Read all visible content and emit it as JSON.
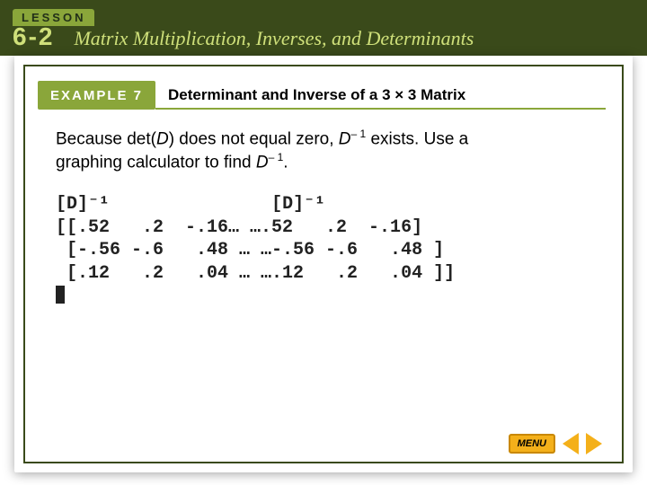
{
  "header": {
    "lesson_label": "LESSON",
    "lesson_number": "6-2",
    "chapter_title": "Matrix Multiplication, Inverses, and Determinants"
  },
  "example": {
    "tab": "EXAMPLE 7",
    "title": "Determinant and Inverse of a 3 × 3 Matrix"
  },
  "body": {
    "line1_prefix": "Because det(",
    "line1_var": "D",
    "line1_mid": ") does not equal zero, ",
    "line1_var2": "D",
    "line1_exp": "– 1",
    "line1_after": " exists. Use a",
    "line2_prefix": "graphing calculator to find ",
    "line2_var": "D",
    "line2_exp": "– 1",
    "line2_after": "."
  },
  "calculator": {
    "line1": "[D]⁻¹               [D]⁻¹",
    "line2": "[[.52   .2  -.16… ….52   .2  -.16]",
    "line3": " [-.56 -.6   .48 … …-.56 -.6   .48 ]",
    "line4": " [.12   .2   .04 … ….12   .2   .04 ]]"
  },
  "nav": {
    "menu": "MENU"
  }
}
